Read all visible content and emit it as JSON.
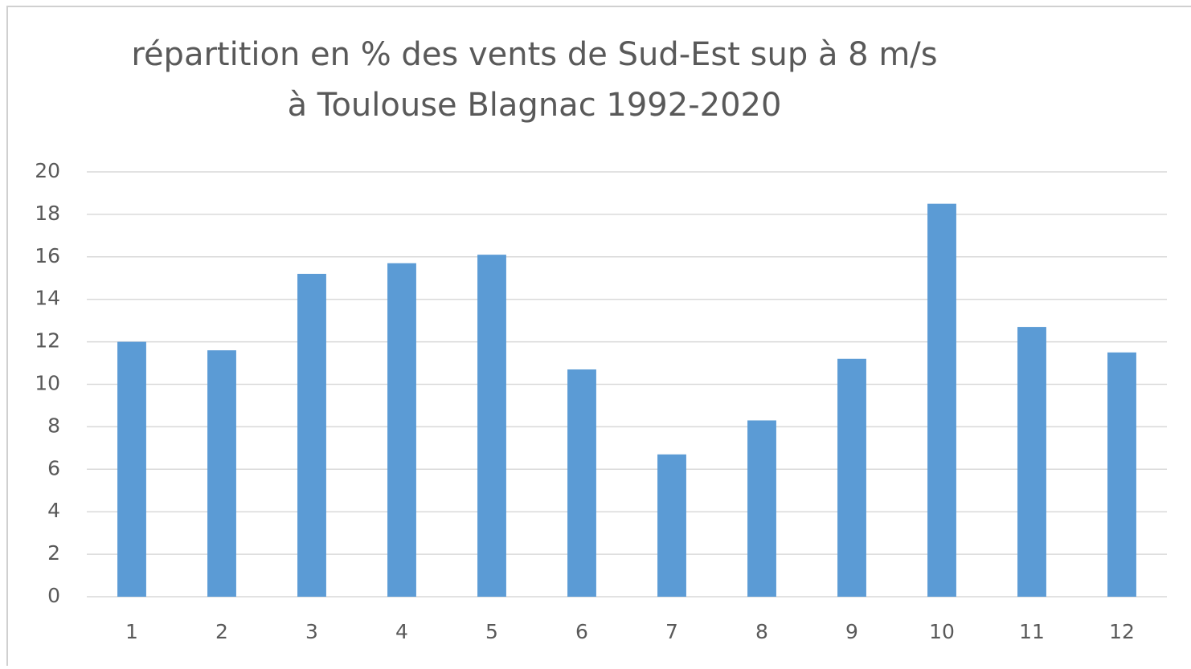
{
  "chart_data": {
    "type": "bar",
    "title": [
      "répartition en % des vents de Sud-Est sup à 8 m/s",
      "à Toulouse Blagnac 1992-2020"
    ],
    "categories": [
      "1",
      "2",
      "3",
      "4",
      "5",
      "6",
      "7",
      "8",
      "9",
      "10",
      "11",
      "12"
    ],
    "values": [
      12.0,
      11.6,
      15.2,
      15.7,
      16.1,
      10.7,
      6.7,
      8.3,
      11.2,
      18.5,
      12.7,
      11.5
    ],
    "color": "#5b9bd5",
    "ylim": [
      0,
      20
    ],
    "yticks": [
      0,
      2,
      4,
      6,
      8,
      10,
      12,
      14,
      16,
      18,
      20
    ],
    "grid": true
  }
}
